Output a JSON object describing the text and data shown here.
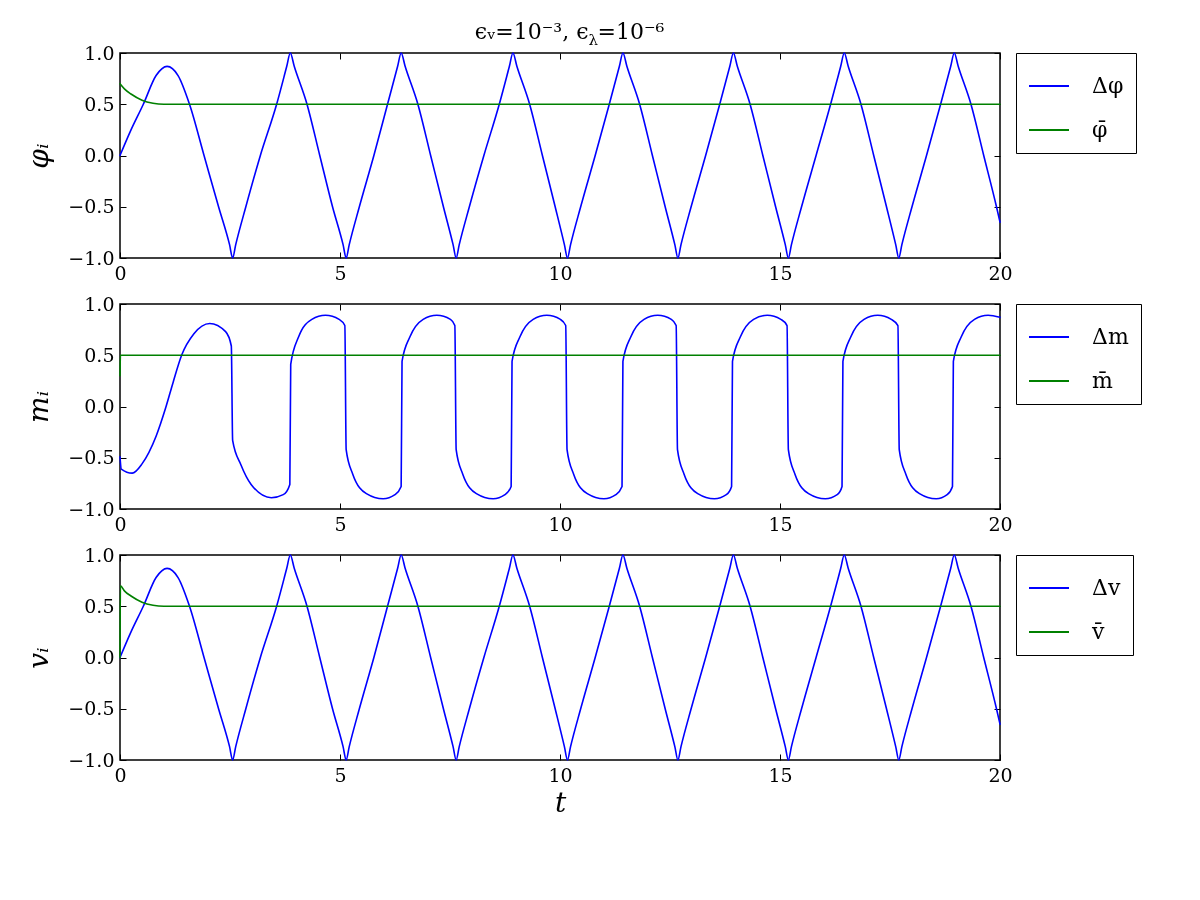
{
  "chart_data": [
    {
      "type": "line",
      "title": "ϵᵥ=10⁻³, ϵ$_{λ}$=10⁻⁶",
      "ylabel": "φᵢ",
      "xlim": [
        0,
        20
      ],
      "ylim": [
        -1,
        1
      ],
      "xticks": [
        0,
        5,
        10,
        15,
        20
      ],
      "yticks": [
        {
          "value": -1,
          "label": "−1.0"
        },
        {
          "value": -0.5,
          "label": "−0.5"
        },
        {
          "value": 0,
          "label": "0.0"
        },
        {
          "value": 0.5,
          "label": "0.5"
        },
        {
          "value": 1,
          "label": "1.0"
        }
      ],
      "legend": "right",
      "series": [
        {
          "name": "Δφ",
          "color": "#0000ff",
          "x": [
            0,
            0.24,
            0.53,
            0.82,
            1.07,
            1.32,
            1.58,
            1.91,
            2.24,
            2.49,
            2.56,
            2.63,
            2.86,
            3.19,
            3.56,
            3.79,
            3.87,
            3.96,
            4.25,
            4.54,
            4.83,
            5.07,
            5.14,
            5.21,
            5.44,
            5.77,
            6.08,
            6.31,
            6.39,
            6.48,
            6.77,
            7.06,
            7.35,
            7.57,
            7.64,
            7.71,
            7.94,
            8.27,
            8.62,
            8.85,
            8.93,
            9.02,
            9.31,
            9.6,
            9.89,
            10.1,
            10.17,
            10.24,
            10.47,
            10.8,
            11.12,
            11.35,
            11.43,
            11.52,
            11.81,
            12.1,
            12.39,
            12.61,
            12.68,
            12.75,
            12.98,
            13.31,
            13.63,
            13.86,
            13.94,
            14.03,
            14.32,
            14.61,
            14.9,
            15.12,
            15.19,
            15.26,
            15.49,
            15.82,
            16.15,
            16.38,
            16.46,
            16.55,
            16.84,
            17.13,
            17.42,
            17.63,
            17.7,
            17.77,
            18.0,
            18.33,
            18.65,
            18.88,
            18.96,
            19.05,
            19.34,
            19.63,
            19.92,
            20
          ],
          "values": [
            0,
            0.24,
            0.5,
            0.78,
            0.87,
            0.78,
            0.5,
            0,
            -0.5,
            -0.87,
            -1,
            -0.87,
            -0.5,
            0,
            0.5,
            0.87,
            1,
            0.87,
            0.5,
            0,
            -0.5,
            -0.87,
            -1,
            -0.87,
            -0.5,
            0,
            0.5,
            0.87,
            1,
            0.87,
            0.5,
            0,
            -0.5,
            -0.87,
            -1,
            -0.87,
            -0.5,
            0,
            0.5,
            0.87,
            1,
            0.87,
            0.5,
            0,
            -0.5,
            -0.87,
            -1,
            -0.87,
            -0.5,
            0,
            0.5,
            0.87,
            1,
            0.87,
            0.5,
            0,
            -0.5,
            -0.87,
            -1,
            -0.87,
            -0.5,
            0,
            0.5,
            0.87,
            1,
            0.87,
            0.5,
            0,
            -0.5,
            -0.87,
            -1,
            -0.87,
            -0.5,
            0,
            0.5,
            0.87,
            1,
            0.87,
            0.5,
            0,
            -0.5,
            -0.87,
            -1,
            -0.87,
            -0.5,
            0,
            0.5,
            0.87,
            1,
            0.87,
            0.5,
            0,
            -0.5,
            -0.65
          ]
        },
        {
          "name": "φ̄",
          "color": "#008000",
          "x": [
            0,
            0.1,
            0.25,
            0.5,
            0.75,
            1.0,
            20
          ],
          "values": [
            0.7,
            0.65,
            0.6,
            0.54,
            0.51,
            0.5,
            0.5
          ]
        }
      ]
    },
    {
      "type": "line",
      "ylabel": "mᵢ",
      "xlim": [
        0,
        20
      ],
      "ylim": [
        -1,
        1
      ],
      "xticks": [
        0,
        5,
        10,
        15,
        20
      ],
      "yticks": [
        {
          "value": -1,
          "label": "−1.0"
        },
        {
          "value": -0.5,
          "label": "−0.5"
        },
        {
          "value": 0,
          "label": "0.0"
        },
        {
          "value": 0.5,
          "label": "0.5"
        },
        {
          "value": 1,
          "label": "1.0"
        }
      ],
      "legend": "right",
      "series": [
        {
          "name": "Δm",
          "color": "#0000ff",
          "x": [
            0,
            0.03,
            0.28,
            0.5,
            0.82,
            1.04,
            1.21,
            1.4,
            1.68,
            2.04,
            2.4,
            2.53,
            2.56,
            2.75,
            2.98,
            3.44,
            3.71,
            3.86,
            3.88,
            4.06,
            4.36,
            4.67,
            4.98,
            5.11,
            5.14,
            5.29,
            5.6,
            5.98,
            6.25,
            6.39,
            6.41,
            6.59,
            6.89,
            7.2,
            7.51,
            7.61,
            7.64,
            7.79,
            8.1,
            8.48,
            8.75,
            8.89,
            8.91,
            9.09,
            9.39,
            9.7,
            10.01,
            10.13,
            10.16,
            10.31,
            10.62,
            11.0,
            11.27,
            11.41,
            11.43,
            11.61,
            11.91,
            12.22,
            12.53,
            12.64,
            12.67,
            12.82,
            13.13,
            13.51,
            13.78,
            13.9,
            13.92,
            14.1,
            14.4,
            14.71,
            15.02,
            15.16,
            15.19,
            15.34,
            15.65,
            16.03,
            16.3,
            16.41,
            16.43,
            16.61,
            16.91,
            17.22,
            17.53,
            17.68,
            17.71,
            17.86,
            18.17,
            18.55,
            18.8,
            18.92,
            18.94,
            19.12,
            19.42,
            19.73,
            20
          ],
          "values": [
            -0.49,
            -0.61,
            -0.65,
            -0.56,
            -0.29,
            -0.01,
            0.24,
            0.5,
            0.71,
            0.81,
            0.73,
            0.59,
            -0.33,
            -0.57,
            -0.76,
            -0.89,
            -0.86,
            -0.76,
            0.41,
            0.68,
            0.85,
            0.89,
            0.85,
            0.79,
            -0.42,
            -0.66,
            -0.85,
            -0.9,
            -0.86,
            -0.78,
            0.44,
            0.68,
            0.85,
            0.89,
            0.85,
            0.79,
            -0.42,
            -0.66,
            -0.85,
            -0.9,
            -0.86,
            -0.78,
            0.44,
            0.68,
            0.85,
            0.89,
            0.85,
            0.79,
            -0.42,
            -0.66,
            -0.85,
            -0.9,
            -0.86,
            -0.78,
            0.44,
            0.68,
            0.85,
            0.89,
            0.85,
            0.79,
            -0.42,
            -0.66,
            -0.85,
            -0.9,
            -0.86,
            -0.78,
            0.44,
            0.68,
            0.85,
            0.89,
            0.85,
            0.79,
            -0.42,
            -0.66,
            -0.85,
            -0.9,
            -0.86,
            -0.78,
            0.44,
            0.68,
            0.85,
            0.89,
            0.85,
            0.79,
            -0.42,
            -0.66,
            -0.85,
            -0.9,
            -0.86,
            -0.78,
            0.44,
            0.68,
            0.85,
            0.89,
            0.87
          ]
        },
        {
          "name": "m̄",
          "color": "#008000",
          "x": [
            0,
            0.01,
            20
          ],
          "values": [
            0.3,
            0.5,
            0.5
          ]
        }
      ]
    },
    {
      "type": "line",
      "xlabel": "t",
      "ylabel": "vᵢ",
      "xlim": [
        0,
        20
      ],
      "ylim": [
        -1,
        1
      ],
      "xticks": [
        0,
        5,
        10,
        15,
        20
      ],
      "yticks": [
        {
          "value": -1,
          "label": "−1.0"
        },
        {
          "value": -0.5,
          "label": "−0.5"
        },
        {
          "value": 0,
          "label": "0.0"
        },
        {
          "value": 0.5,
          "label": "0.5"
        },
        {
          "value": 1,
          "label": "1.0"
        }
      ],
      "legend": "right",
      "series": [
        {
          "name": "Δv",
          "color": "#0000ff",
          "x": [
            0,
            0.24,
            0.53,
            0.82,
            1.07,
            1.32,
            1.58,
            1.91,
            2.24,
            2.49,
            2.56,
            2.63,
            2.86,
            3.19,
            3.56,
            3.79,
            3.87,
            3.96,
            4.25,
            4.54,
            4.83,
            5.07,
            5.14,
            5.21,
            5.44,
            5.77,
            6.08,
            6.31,
            6.39,
            6.48,
            6.77,
            7.06,
            7.35,
            7.57,
            7.64,
            7.71,
            7.94,
            8.27,
            8.62,
            8.85,
            8.93,
            9.02,
            9.31,
            9.6,
            9.89,
            10.1,
            10.17,
            10.24,
            10.47,
            10.8,
            11.12,
            11.35,
            11.43,
            11.52,
            11.81,
            12.1,
            12.39,
            12.61,
            12.68,
            12.75,
            12.98,
            13.31,
            13.63,
            13.86,
            13.94,
            14.03,
            14.32,
            14.61,
            14.9,
            15.12,
            15.19,
            15.26,
            15.49,
            15.82,
            16.15,
            16.38,
            16.46,
            16.55,
            16.84,
            17.13,
            17.42,
            17.63,
            17.7,
            17.77,
            18.0,
            18.33,
            18.65,
            18.88,
            18.96,
            19.05,
            19.34,
            19.63,
            19.92,
            20
          ],
          "values": [
            0,
            0.24,
            0.5,
            0.78,
            0.87,
            0.78,
            0.5,
            0,
            -0.5,
            -0.87,
            -1,
            -0.87,
            -0.5,
            0,
            0.5,
            0.87,
            1,
            0.87,
            0.5,
            0,
            -0.5,
            -0.87,
            -1,
            -0.87,
            -0.5,
            0,
            0.5,
            0.87,
            1,
            0.87,
            0.5,
            0,
            -0.5,
            -0.87,
            -1,
            -0.87,
            -0.5,
            0,
            0.5,
            0.87,
            1,
            0.87,
            0.5,
            0,
            -0.5,
            -0.87,
            -1,
            -0.87,
            -0.5,
            0,
            0.5,
            0.87,
            1,
            0.87,
            0.5,
            0,
            -0.5,
            -0.87,
            -1,
            -0.87,
            -0.5,
            0,
            0.5,
            0.87,
            1,
            0.87,
            0.5,
            0,
            -0.5,
            -0.87,
            -1,
            -0.87,
            -0.5,
            0,
            0.5,
            0.87,
            1,
            0.87,
            0.5,
            0,
            -0.5,
            -0.87,
            -1,
            -0.87,
            -0.5,
            0,
            0.5,
            0.87,
            1,
            0.87,
            0.5,
            0,
            -0.5,
            -0.65
          ]
        },
        {
          "name": "v̄",
          "color": "#008000",
          "x": [
            0,
            0.01,
            0.1,
            0.25,
            0.5,
            0.75,
            1.0,
            20
          ],
          "values": [
            0,
            0.7,
            0.65,
            0.6,
            0.54,
            0.51,
            0.5,
            0.5
          ]
        }
      ]
    }
  ]
}
